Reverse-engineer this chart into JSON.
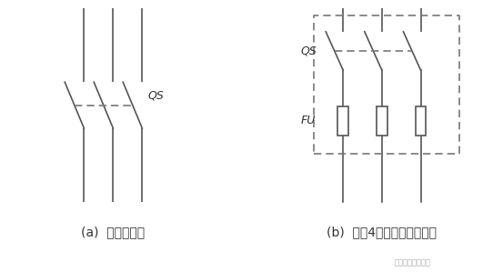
{
  "bg_color": "#ffffff",
  "line_color": "#555555",
  "dashed_color": "#777777",
  "text_color": "#333333",
  "label_a": "(a)  刀开关符号",
  "label_b": "(b)  带焉4断器的刀开关符号",
  "watermark": "建筑水电知识平台",
  "qs_label": "QS",
  "fu_label": "FU",
  "font_size_label": 10,
  "font_size_small": 6
}
